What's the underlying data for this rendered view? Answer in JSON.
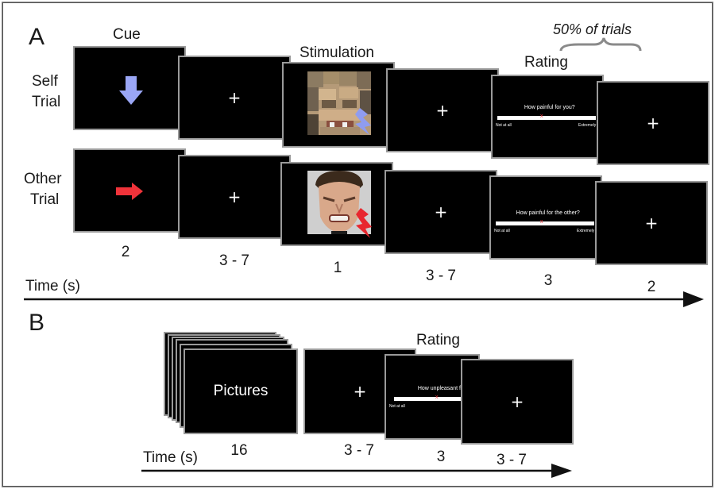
{
  "panel_a": {
    "letter": "A",
    "headers": {
      "cue": "Cue",
      "stimulation": "Stimulation",
      "rating": "Rating",
      "fraction": "50% of trials"
    },
    "rows": {
      "self": [
        "Self",
        "Trial"
      ],
      "other": [
        "Other",
        "Trial"
      ]
    },
    "rating_self": {
      "question": "How painful for you?",
      "left": "Not at all",
      "right": "Extremely",
      "mark": "x"
    },
    "rating_other": {
      "question": "How painful for the other?",
      "left": "Not at all",
      "right": "Extremely",
      "mark": "x"
    },
    "fixation": "+",
    "durations": [
      "2",
      "3 - 7",
      "1",
      "3 - 7",
      "3",
      "2"
    ],
    "time_label": "Time (s)",
    "colors": {
      "self_cue": "#9aa6f5",
      "other_cue": "#f0333a",
      "self_bolt": "#8f9cf0",
      "other_bolt": "#e8262e"
    }
  },
  "panel_b": {
    "letter": "B",
    "pictures": "Pictures",
    "rating_header": "Rating",
    "rating": {
      "question": "How unpleasant for",
      "left": "Not at all",
      "mark": "x"
    },
    "fixation": "+",
    "durations": [
      "16",
      "3 - 7",
      "3",
      "3 - 7"
    ],
    "time_label": "Time (s)"
  }
}
